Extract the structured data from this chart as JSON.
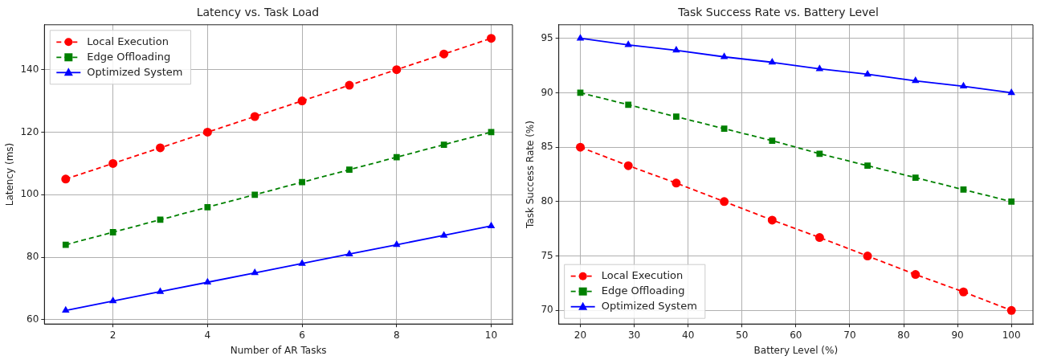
{
  "chart_data": [
    {
      "type": "line",
      "title": "Latency vs. Task Load",
      "xlabel": "Number of AR Tasks",
      "ylabel": "Latency (ms)",
      "x": [
        1,
        2,
        3,
        4,
        5,
        6,
        7,
        8,
        9,
        10
      ],
      "xlim": [
        0.55,
        10.45
      ],
      "ylim": [
        58.65,
        154.35
      ],
      "xticks": [
        2,
        4,
        6,
        8,
        10
      ],
      "yticks": [
        60,
        80,
        100,
        120,
        140
      ],
      "grid": true,
      "legend": "top left",
      "series": [
        {
          "name": "Local Execution",
          "color": "#ff0000",
          "marker": "circle",
          "line_style": "dashed",
          "values": [
            105,
            110,
            115,
            120,
            125,
            130,
            135,
            140,
            145,
            150
          ]
        },
        {
          "name": "Edge Offloading",
          "color": "#008000",
          "marker": "square",
          "line_style": "dashed",
          "values": [
            84,
            88,
            92,
            96,
            100,
            104,
            108,
            112,
            116,
            120
          ]
        },
        {
          "name": "Optimized System",
          "color": "#0000ff",
          "marker": "triangle",
          "line_style": "solid",
          "values": [
            63,
            66,
            69,
            72,
            75,
            78,
            81,
            84,
            87,
            90
          ]
        }
      ]
    },
    {
      "type": "line",
      "title": "Task Success Rate vs. Battery Level",
      "xlabel": "Battery Level (%)",
      "ylabel": "Task Success Rate (%)",
      "x": [
        20,
        28.9,
        37.8,
        46.7,
        55.6,
        64.4,
        73.3,
        82.2,
        91.1,
        100
      ],
      "xlim": [
        16,
        104
      ],
      "ylim": [
        68.75,
        96.25
      ],
      "xticks": [
        20,
        30,
        40,
        50,
        60,
        70,
        80,
        90,
        100
      ],
      "yticks": [
        70,
        75,
        80,
        85,
        90,
        95
      ],
      "grid": true,
      "legend": "bottom left",
      "series": [
        {
          "name": "Local Execution",
          "color": "#ff0000",
          "marker": "circle",
          "line_style": "dashed",
          "values": [
            85,
            83.3,
            81.7,
            80,
            78.3,
            76.7,
            75,
            73.3,
            71.7,
            70
          ]
        },
        {
          "name": "Edge Offloading",
          "color": "#008000",
          "marker": "square",
          "line_style": "dashed",
          "values": [
            90,
            88.9,
            87.8,
            86.7,
            85.6,
            84.4,
            83.3,
            82.2,
            81.1,
            80
          ]
        },
        {
          "name": "Optimized System",
          "color": "#0000ff",
          "marker": "triangle",
          "line_style": "solid",
          "values": [
            95,
            94.4,
            93.9,
            93.3,
            92.8,
            92.2,
            91.7,
            91.1,
            90.6,
            90
          ]
        }
      ]
    }
  ]
}
